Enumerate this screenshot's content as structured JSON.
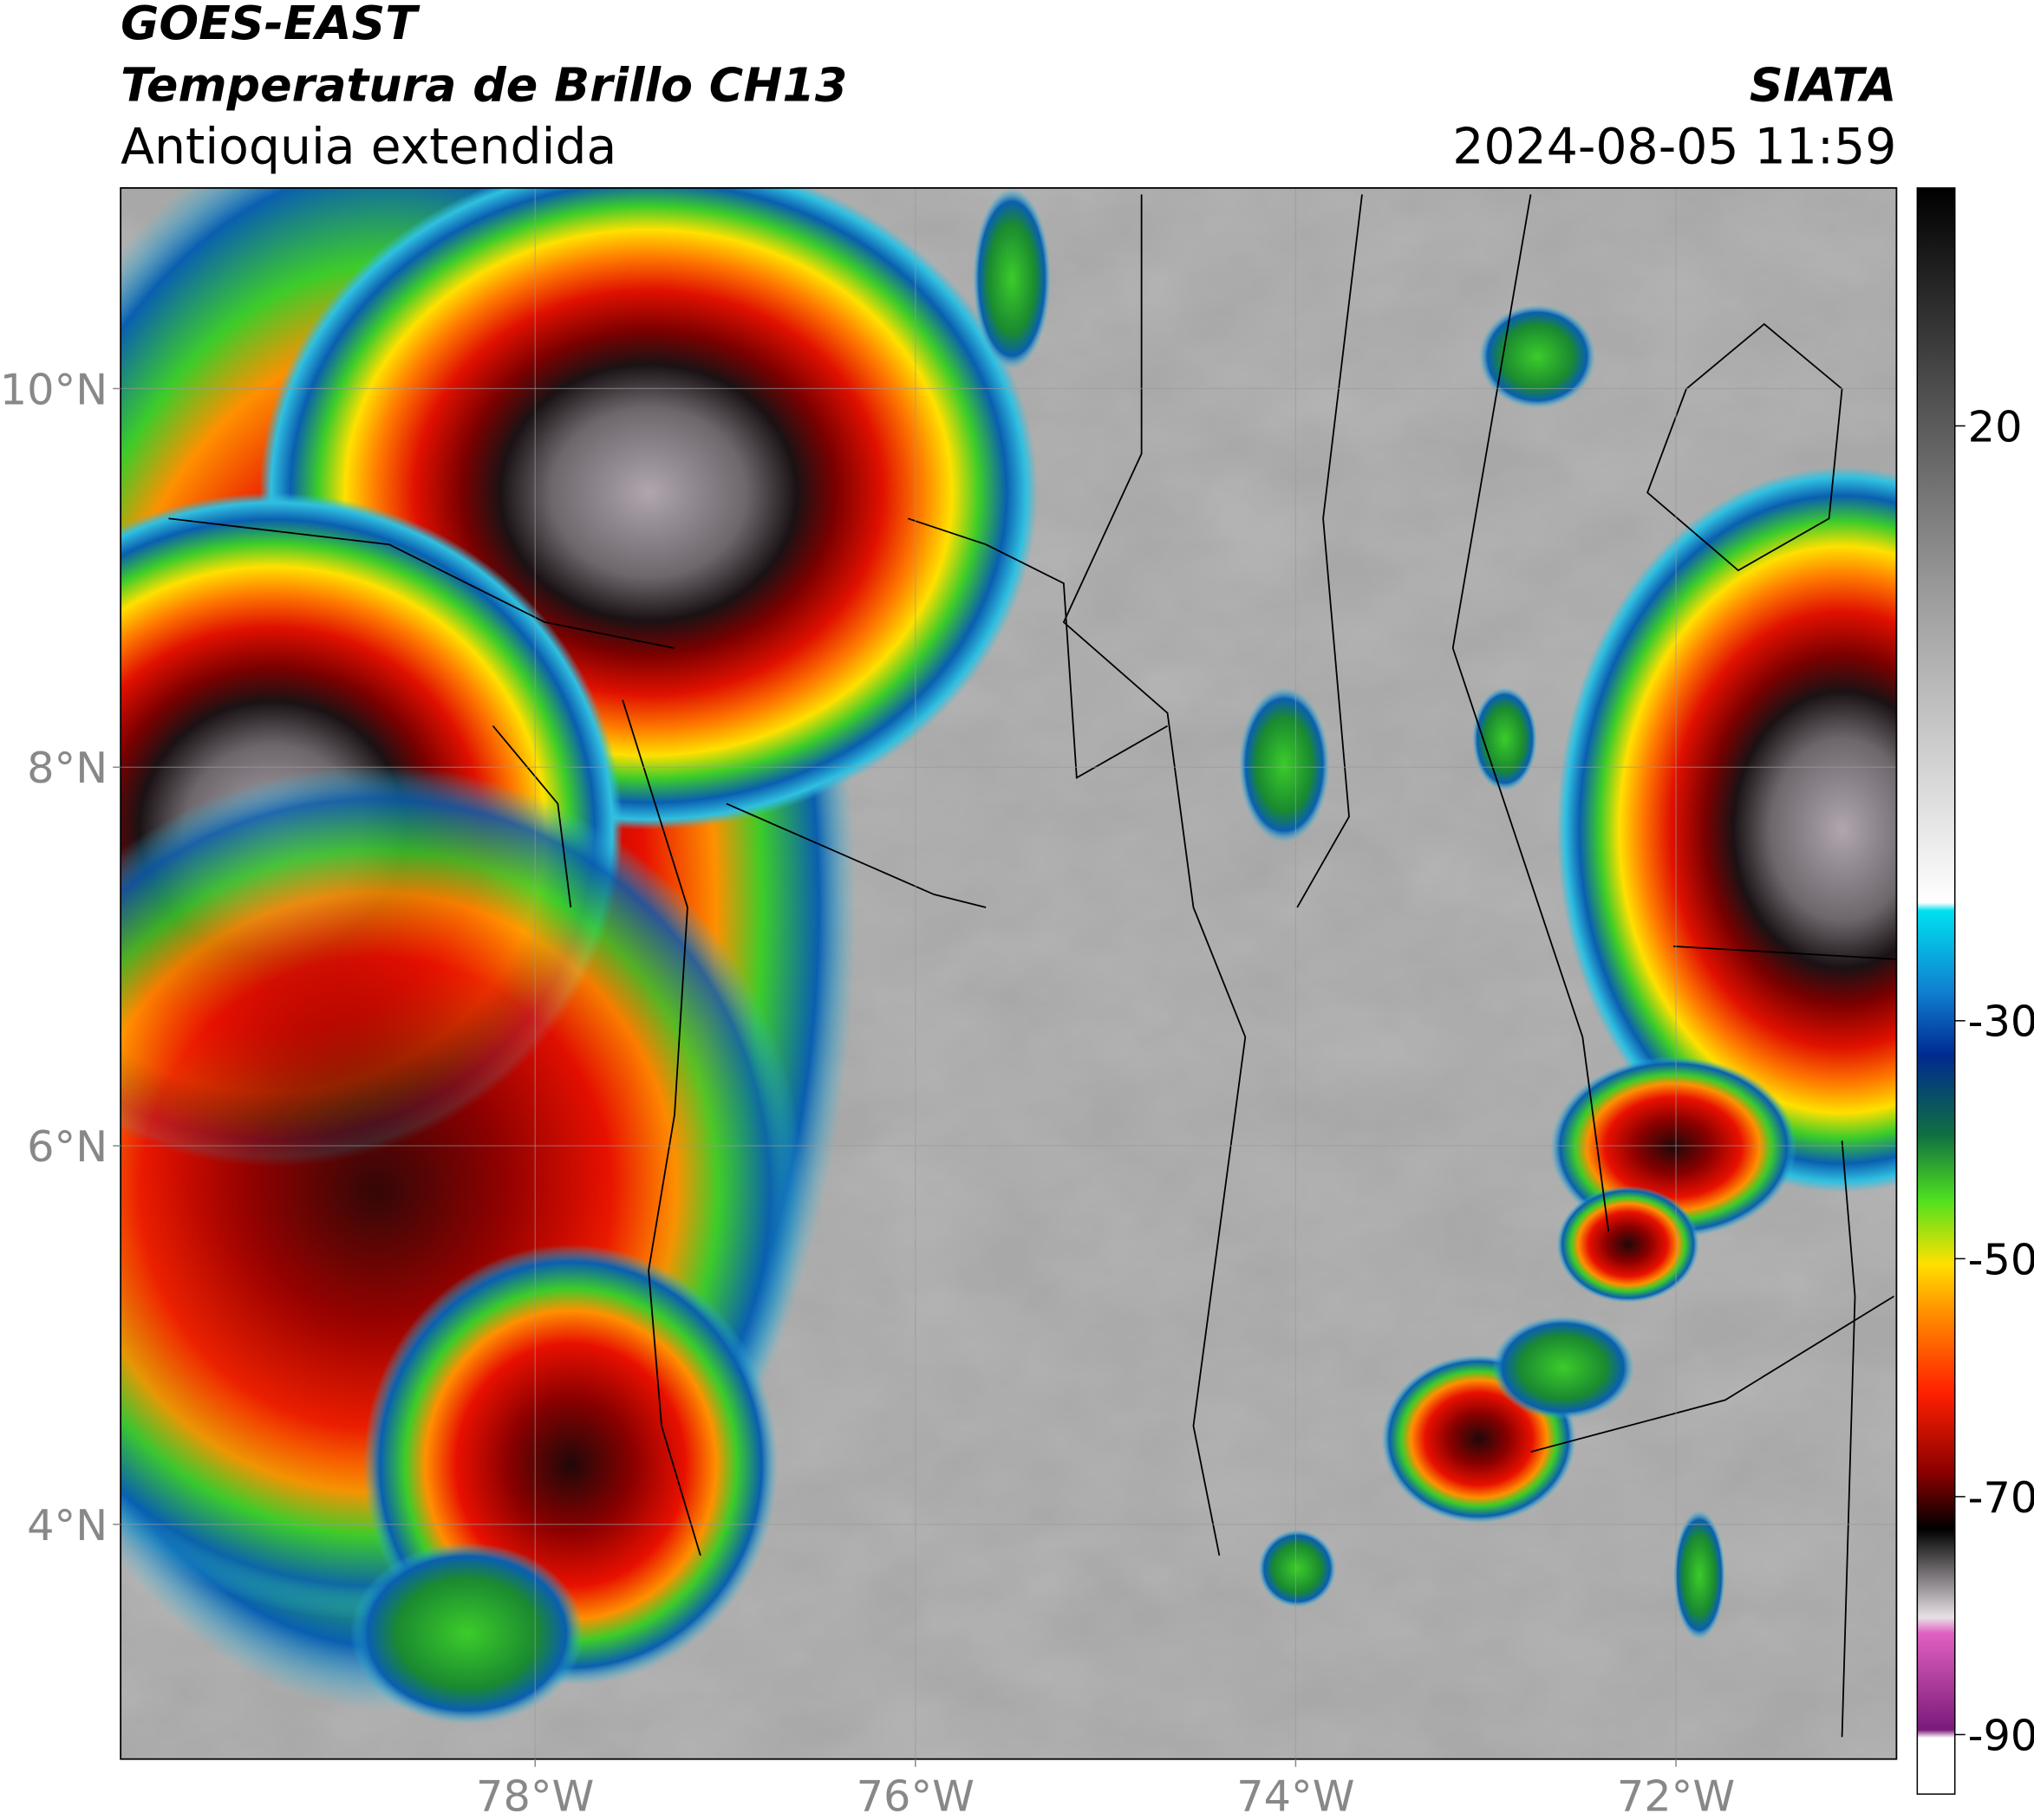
{
  "header": {
    "title_line1": "GOES-EAST",
    "title_line2": "Temperatura de Brillo CH13",
    "subtitle": "Antioquia extendida",
    "agency": "SIATA",
    "datetime": "2024-08-05 11:59"
  },
  "map": {
    "lonlim": [
      -80.18,
      -70.84
    ],
    "latlim": [
      2.76,
      11.06
    ],
    "lon_ticks": [
      {
        "value": -78,
        "label": "78°W"
      },
      {
        "value": -76,
        "label": "76°W"
      },
      {
        "value": -74,
        "label": "74°W"
      },
      {
        "value": -72,
        "label": "72°W"
      }
    ],
    "lat_ticks": [
      {
        "value": 10,
        "label": "10°N"
      },
      {
        "value": 8,
        "label": "8°N"
      },
      {
        "value": 6,
        "label": "6°N"
      },
      {
        "value": 4,
        "label": "4°N"
      }
    ],
    "grid": true
  },
  "colorbar": {
    "lim": [
      -95,
      40
    ],
    "ticks": [
      20,
      -30,
      -50,
      -70,
      -90
    ]
  }
}
